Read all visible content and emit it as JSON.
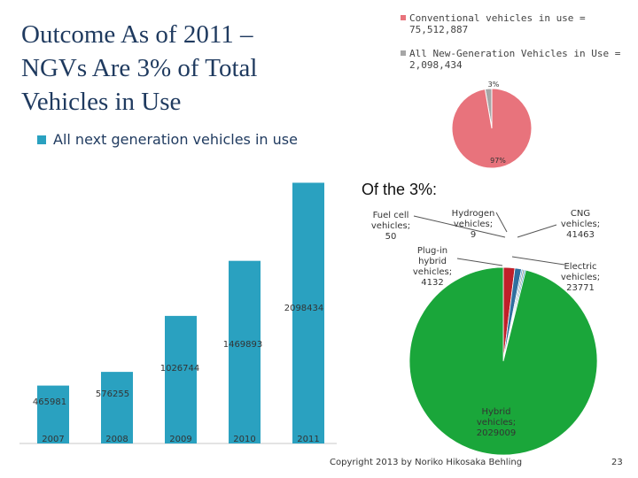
{
  "slide": {
    "title_lines": [
      "Outcome As of 2011 –",
      "NGVs Are 3% of Total",
      "Vehicles in Use"
    ],
    "bullet": "All next generation vehicles in use",
    "footer": "Copyright 2013 by Noriko Hikosaka Behling",
    "page_number": "23",
    "bar_color": "#2aa1c0"
  },
  "chart_data": [
    {
      "type": "bar",
      "title": "All next generation vehicles in use",
      "categories": [
        "2007",
        "2008",
        "2009",
        "2010",
        "2011"
      ],
      "values": [
        465981,
        576255,
        1026744,
        1469893,
        2098434
      ],
      "value_labels": [
        "465981",
        "576255",
        "1026744",
        "1469893",
        "2098434"
      ],
      "xlabel": "",
      "ylabel": "",
      "ylim": [
        0,
        2180000
      ],
      "color": "#2aa1c0"
    },
    {
      "type": "pie",
      "labels": [
        "Conventional vehicles in use",
        "All New-Generation Vehicles in Use"
      ],
      "values": [
        75512887,
        2098434
      ],
      "legend": [
        "Conventional vehicles in use = 75,512,887",
        "All New-Generation Vehicles in Use = 2,098,434"
      ],
      "slice_labels": [
        "97%",
        "3%"
      ],
      "colors": [
        "#e8737c",
        "#a6a6a6"
      ]
    },
    {
      "type": "pie",
      "title": "Of the 3%:",
      "labels": [
        "Hybrid vehicles",
        "CNG vehicles",
        "Electric vehicles",
        "Plug-in hybrid vehicles",
        "Hydrogen vehicles",
        "Fuel cell vehicles"
      ],
      "values": [
        2029009,
        41463,
        23771,
        4132,
        9,
        50
      ],
      "slice_labels": [
        [
          "Hybrid",
          "vehicles;",
          "2029009"
        ],
        [
          "CNG",
          "vehicles;",
          "41463"
        ],
        [
          "Electric",
          "vehicles;",
          "23771"
        ],
        [
          "Plug-in",
          "hybrid",
          "vehicles;",
          "4132"
        ],
        [
          "Hydrogen",
          "vehicles;",
          "9"
        ],
        [
          "Fuel cell",
          "vehicles;",
          "50"
        ]
      ],
      "colors": [
        "#1aa63a",
        "#c0202a",
        "#2f6f9f",
        "#4b9cc9",
        "#888888",
        "#2aa1c0"
      ]
    }
  ]
}
